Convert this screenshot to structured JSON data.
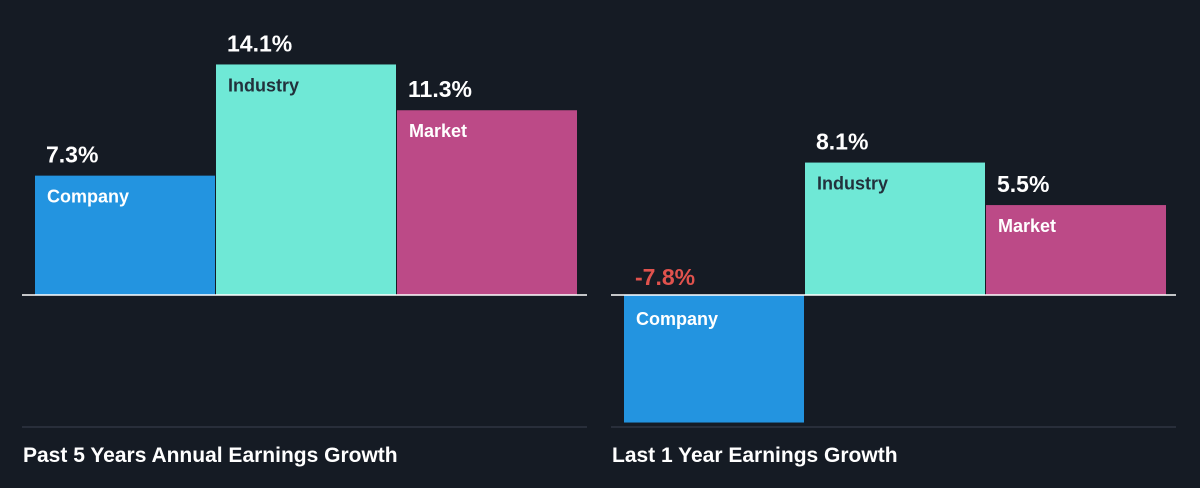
{
  "colors": {
    "background": "#151b24",
    "company": "#2394e0",
    "industry": "#6fe8d6",
    "market": "#bc4a87",
    "negative_value": "#e0524d",
    "value_text": "#ffffff",
    "label_dark": "#22313c",
    "label_light": "#ffffff",
    "axis": "#ffffff",
    "baseline": "#3a4150"
  },
  "chart_data": [
    {
      "type": "bar",
      "title": "Past 5 Years Annual Earnings Growth",
      "categories": [
        "Company",
        "Industry",
        "Market"
      ],
      "values": [
        7.3,
        14.1,
        11.3
      ],
      "value_labels": [
        "7.3%",
        "14.1%",
        "11.3%"
      ],
      "unit": "%",
      "ylim": [
        -12,
        15.5
      ],
      "grid": false,
      "legend": "none"
    },
    {
      "type": "bar",
      "title": "Last 1 Year Earnings Growth",
      "categories": [
        "Company",
        "Industry",
        "Market"
      ],
      "values": [
        -7.8,
        8.1,
        5.5
      ],
      "value_labels": [
        "-7.8%",
        "8.1%",
        "5.5%"
      ],
      "unit": "%",
      "ylim": [
        -12,
        15.5
      ],
      "grid": false,
      "legend": "none"
    }
  ]
}
